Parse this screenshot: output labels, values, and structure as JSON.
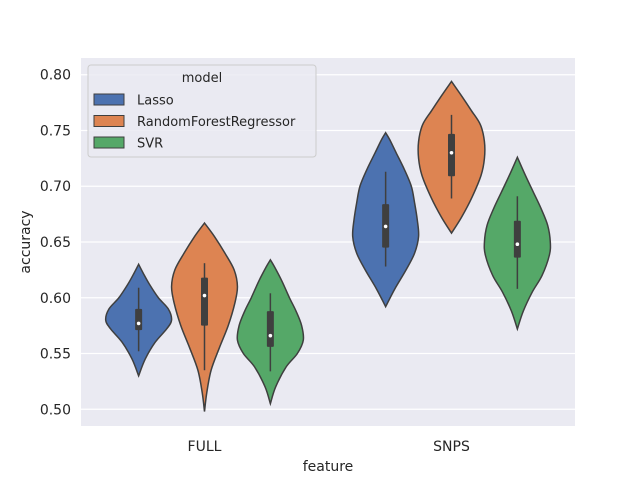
{
  "chart_data": {
    "type": "violin",
    "xlabel": "feature",
    "ylabel": "accuracy",
    "categories": [
      "FULL",
      "SNPS"
    ],
    "ylim": [
      0.485,
      0.815
    ],
    "yticks": [
      "0.50",
      "0.55",
      "0.60",
      "0.65",
      "0.70",
      "0.75",
      "0.80"
    ],
    "grid": true,
    "legend": {
      "title": "model",
      "placement": "top-left",
      "entries": [
        "Lasso",
        "RandomForestRegressor",
        "SVR"
      ]
    },
    "series": [
      {
        "name": "Lasso",
        "color": "#4c72b0",
        "violins": [
          {
            "category": "FULL",
            "min": 0.53,
            "max": 0.63,
            "q1": 0.571,
            "median": 0.577,
            "q3": 0.59,
            "whisker_low": 0.552,
            "whisker_high": 0.609,
            "profile": [
              [
                0.53,
                0.0
              ],
              [
                0.545,
                0.2
              ],
              [
                0.56,
                0.5
              ],
              [
                0.572,
                0.85
              ],
              [
                0.58,
                1.0
              ],
              [
                0.59,
                0.9
              ],
              [
                0.6,
                0.6
              ],
              [
                0.612,
                0.33
              ],
              [
                0.622,
                0.14
              ],
              [
                0.63,
                0.0
              ]
            ]
          },
          {
            "category": "SNPS",
            "min": 0.592,
            "max": 0.748,
            "q1": 0.645,
            "median": 0.664,
            "q3": 0.684,
            "whisker_low": 0.628,
            "whisker_high": 0.713,
            "profile": [
              [
                0.592,
                0.0
              ],
              [
                0.608,
                0.28
              ],
              [
                0.625,
                0.62
              ],
              [
                0.64,
                0.88
              ],
              [
                0.655,
                1.0
              ],
              [
                0.67,
                0.96
              ],
              [
                0.685,
                0.88
              ],
              [
                0.7,
                0.78
              ],
              [
                0.715,
                0.57
              ],
              [
                0.73,
                0.32
              ],
              [
                0.742,
                0.12
              ],
              [
                0.748,
                0.0
              ]
            ]
          }
        ]
      },
      {
        "name": "RandomForestRegressor",
        "color": "#dd8452",
        "violins": [
          {
            "category": "FULL",
            "min": 0.498,
            "max": 0.667,
            "q1": 0.575,
            "median": 0.602,
            "q3": 0.618,
            "whisker_low": 0.535,
            "whisker_high": 0.631,
            "profile": [
              [
                0.498,
                0.0
              ],
              [
                0.515,
                0.07
              ],
              [
                0.535,
                0.2
              ],
              [
                0.555,
                0.45
              ],
              [
                0.575,
                0.72
              ],
              [
                0.595,
                0.92
              ],
              [
                0.61,
                1.0
              ],
              [
                0.625,
                0.9
              ],
              [
                0.64,
                0.62
              ],
              [
                0.655,
                0.3
              ],
              [
                0.667,
                0.0
              ]
            ]
          },
          {
            "category": "SNPS",
            "min": 0.658,
            "max": 0.794,
            "q1": 0.709,
            "median": 0.73,
            "q3": 0.747,
            "whisker_low": 0.689,
            "whisker_high": 0.764,
            "profile": [
              [
                0.658,
                0.0
              ],
              [
                0.672,
                0.3
              ],
              [
                0.69,
                0.62
              ],
              [
                0.71,
                0.9
              ],
              [
                0.725,
                1.0
              ],
              [
                0.74,
                1.0
              ],
              [
                0.755,
                0.88
              ],
              [
                0.768,
                0.6
              ],
              [
                0.78,
                0.33
              ],
              [
                0.794,
                0.0
              ]
            ]
          }
        ]
      },
      {
        "name": "SVR",
        "color": "#55a868",
        "violins": [
          {
            "category": "FULL",
            "min": 0.505,
            "max": 0.634,
            "q1": 0.556,
            "median": 0.566,
            "q3": 0.588,
            "whisker_low": 0.534,
            "whisker_high": 0.604,
            "profile": [
              [
                0.505,
                0.0
              ],
              [
                0.52,
                0.16
              ],
              [
                0.538,
                0.48
              ],
              [
                0.55,
                0.82
              ],
              [
                0.562,
                1.0
              ],
              [
                0.575,
                0.95
              ],
              [
                0.588,
                0.78
              ],
              [
                0.6,
                0.58
              ],
              [
                0.615,
                0.35
              ],
              [
                0.628,
                0.12
              ],
              [
                0.634,
                0.0
              ]
            ]
          },
          {
            "category": "SNPS",
            "min": 0.572,
            "max": 0.726,
            "q1": 0.636,
            "median": 0.648,
            "q3": 0.669,
            "whisker_low": 0.608,
            "whisker_high": 0.691,
            "profile": [
              [
                0.572,
                0.0
              ],
              [
                0.588,
                0.18
              ],
              [
                0.605,
                0.45
              ],
              [
                0.62,
                0.75
              ],
              [
                0.638,
                0.97
              ],
              [
                0.65,
                1.0
              ],
              [
                0.665,
                0.92
              ],
              [
                0.68,
                0.72
              ],
              [
                0.695,
                0.48
              ],
              [
                0.71,
                0.24
              ],
              [
                0.726,
                0.0
              ]
            ]
          }
        ]
      }
    ]
  }
}
